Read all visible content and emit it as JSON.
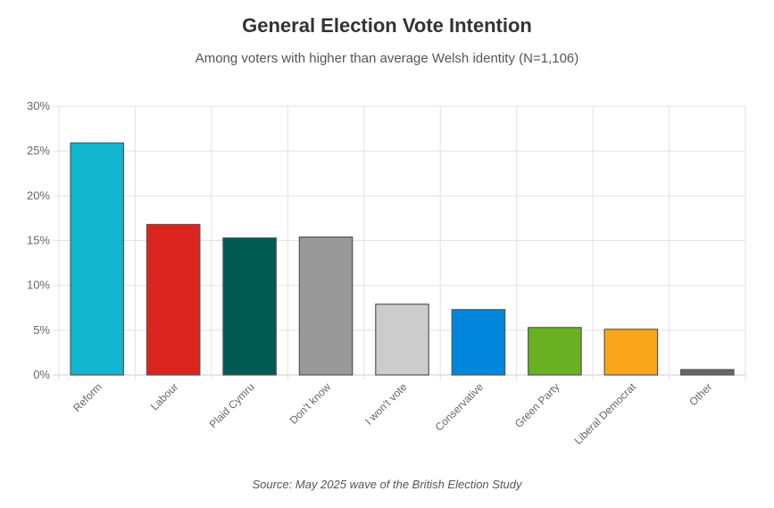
{
  "chart_data": {
    "type": "bar",
    "title": "General Election Vote Intention",
    "subtitle": "Among voters with higher than average Welsh identity (N=1,106)",
    "source": "Source: May 2025 wave of the British Election Study",
    "xlabel": "",
    "ylabel": "",
    "ylim": [
      0,
      30
    ],
    "yticks": [
      0,
      5,
      10,
      15,
      20,
      25,
      30
    ],
    "ytick_labels": [
      "0%",
      "5%",
      "10%",
      "15%",
      "20%",
      "25%",
      "30%"
    ],
    "grid": true,
    "legend": "none",
    "categories": [
      "Reform",
      "Labour",
      "Plaid Cymru",
      "Don't know",
      "I won't vote",
      "Conservative",
      "Green Party",
      "Liberal Democrat",
      "Other"
    ],
    "values": [
      25.9,
      16.8,
      15.3,
      15.4,
      7.9,
      7.3,
      5.3,
      5.1,
      0.6
    ],
    "colors": [
      "#12B6CF",
      "#DC241F",
      "#005B54",
      "#999999",
      "#CCCCCC",
      "#0087DC",
      "#6AB023",
      "#FAA61A",
      "#666666"
    ]
  }
}
